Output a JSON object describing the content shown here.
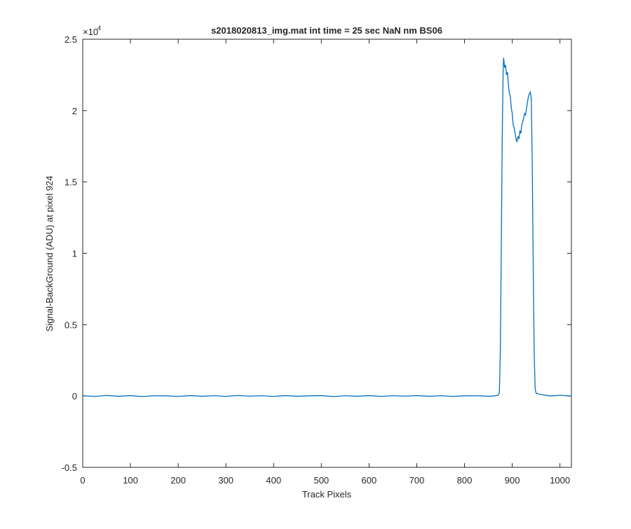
{
  "chart_data": {
    "type": "line",
    "title": "s2018020813_img.mat int time = 25 sec  NaN nm BS06",
    "x_label": "Track Pixels",
    "y_label": "Signal-BackGround (ADU) at pixel 924",
    "y_multiplier_base": "×10",
    "y_multiplier_exponent": "4",
    "xlim": [
      0,
      1024
    ],
    "xticks": [
      0,
      100,
      200,
      300,
      400,
      500,
      600,
      700,
      800,
      900,
      1000
    ],
    "ylim": [
      -0.5,
      2.5
    ],
    "yticks": [
      -0.5,
      0,
      0.5,
      1,
      1.5,
      2,
      2.5
    ],
    "grid": false,
    "series": [
      {
        "color": "#0072bd",
        "x": [
          0,
          25,
          50,
          75,
          100,
          125,
          150,
          175,
          200,
          225,
          250,
          275,
          300,
          325,
          350,
          375,
          400,
          425,
          450,
          475,
          500,
          525,
          550,
          575,
          600,
          625,
          650,
          675,
          700,
          725,
          750,
          775,
          800,
          825,
          850,
          860,
          870,
          873,
          875,
          877,
          879,
          881,
          882,
          884,
          886,
          888,
          890,
          892,
          894,
          896,
          898,
          900,
          902,
          904,
          906,
          908,
          910,
          912,
          914,
          916,
          918,
          920,
          922,
          924,
          926,
          928,
          930,
          932,
          934,
          936,
          938,
          940,
          942,
          944,
          946,
          948,
          950,
          960,
          980,
          1000,
          1024
        ],
        "values": [
          0.002,
          -0.003,
          0.004,
          -0.002,
          0.003,
          -0.004,
          0.002,
          0.001,
          -0.003,
          0.003,
          -0.002,
          0.002,
          -0.003,
          0.004,
          -0.001,
          0.002,
          -0.003,
          0.003,
          -0.002,
          0.001,
          0.003,
          -0.004,
          0.002,
          -0.002,
          0.003,
          -0.003,
          0.002,
          -0.001,
          0.003,
          -0.002,
          0.002,
          -0.003,
          0.001,
          0.002,
          -0.002,
          0.0,
          0.005,
          0.02,
          0.3,
          1.0,
          1.8,
          2.3,
          2.37,
          2.3,
          2.32,
          2.25,
          2.27,
          2.18,
          2.12,
          2.1,
          2.02,
          1.98,
          1.9,
          1.88,
          1.84,
          1.8,
          1.78,
          1.82,
          1.8,
          1.86,
          1.84,
          1.9,
          1.92,
          1.95,
          1.98,
          1.97,
          2.02,
          2.06,
          2.1,
          2.12,
          2.13,
          2.08,
          1.6,
          0.9,
          0.3,
          0.05,
          0.02,
          0.01,
          0.0,
          0.005,
          0.0
        ]
      }
    ]
  }
}
